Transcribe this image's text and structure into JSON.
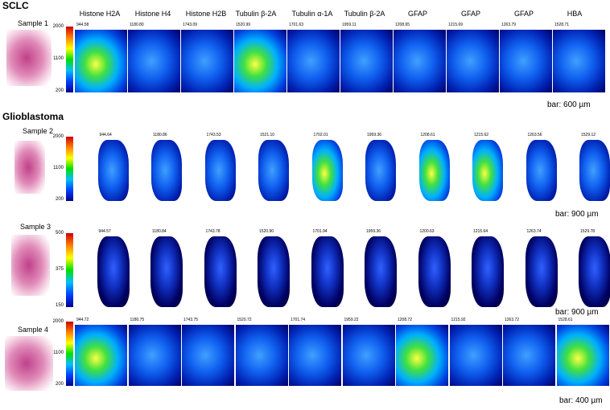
{
  "sections": [
    "SCLC",
    "Glioblastoma"
  ],
  "headers": [
    "Histone H2A",
    "Histone H4",
    "Histone H2B",
    "Tubulin β-2A",
    "Tubulin α-1A",
    "Tubulin β-2A",
    "GFAP",
    "GFAP",
    "GFAP",
    "HBA"
  ],
  "rows": [
    {
      "sample": "Sample 1",
      "ticks": [
        "2000",
        "1100",
        "200"
      ],
      "scale": "bar: 600 µm",
      "mz": [
        "944.58",
        "1180.80",
        "1743.09",
        "1520.99",
        "1701.63",
        "1959.11",
        "1208.65",
        "1215.69",
        "1263.79",
        "1528.71"
      ]
    },
    {
      "sample": "Sample 2",
      "ticks": [
        "2000",
        "1100",
        "200"
      ],
      "scale": "bar: 900 µm",
      "mz": [
        "944.64",
        "1180.86",
        "1743.53",
        "1521.10",
        "1702.01",
        "1959.36",
        "1208.61",
        "1215.62",
        "1263.56",
        "1529.12"
      ]
    },
    {
      "sample": "Sample 3",
      "ticks": [
        "500",
        "375",
        "150"
      ],
      "scale": "bar: 900 µm",
      "mz": [
        "944.57",
        "1180.84",
        "1743.78",
        "1520.90",
        "1701.94",
        "1959.36",
        "1200.63",
        "1215.64",
        "1263.74",
        "1529.78"
      ]
    },
    {
      "sample": "Sample 4",
      "ticks": [
        "2000",
        "1100",
        "200"
      ],
      "scale": "bar: 400 µm",
      "mz": [
        "944.72",
        "1180.75",
        "1743.75",
        "1520.72",
        "1701.74",
        "1959.22",
        "1208.72",
        "1215.92",
        "1263.72",
        "1528.61"
      ]
    }
  ]
}
